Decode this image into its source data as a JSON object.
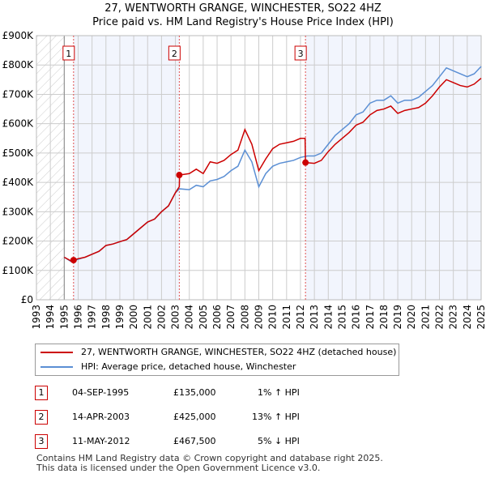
{
  "chart_data": {
    "type": "line",
    "title": "27, WENTWORTH GRANGE, WINCHESTER, SO22 4HZ",
    "subtitle": "Price paid vs. HM Land Registry's House Price Index (HPI)",
    "xlim": [
      1993,
      2025
    ],
    "ylim": [
      0,
      900000
    ],
    "y_ticks": [
      "£0",
      "£100K",
      "£200K",
      "£300K",
      "£400K",
      "£500K",
      "£600K",
      "£700K",
      "£800K",
      "£900K"
    ],
    "x_ticks": [
      "1993",
      "1994",
      "1995",
      "1996",
      "1997",
      "1998",
      "1999",
      "2000",
      "2001",
      "2002",
      "2003",
      "2004",
      "2005",
      "2006",
      "2007",
      "2008",
      "2009",
      "2010",
      "2011",
      "2012",
      "2013",
      "2014",
      "2015",
      "2016",
      "2017",
      "2018",
      "2019",
      "2020",
      "2021",
      "2022",
      "2023",
      "2024",
      "2025"
    ],
    "grid": true,
    "series": [
      {
        "name": "27, WENTWORTH GRANGE, WINCHESTER, SO22 4HZ (detached house)",
        "color": "#cc0000",
        "x": [
          1995,
          1995.5,
          1996,
          1996.5,
          1997,
          1997.5,
          1998,
          1998.5,
          1999,
          1999.5,
          2000,
          2000.5,
          2001,
          2001.5,
          2002,
          2002.5,
          2003,
          2003.28,
          2003.3,
          2004,
          2004.5,
          2005,
          2005.5,
          2006,
          2006.5,
          2007,
          2007.5,
          2008,
          2008.5,
          2009,
          2009.5,
          2010,
          2010.5,
          2011,
          2011.5,
          2012,
          2012.33,
          2012.36,
          2013,
          2013.5,
          2014,
          2014.5,
          2015,
          2015.5,
          2016,
          2016.5,
          2017,
          2017.5,
          2018,
          2018.5,
          2019,
          2019.5,
          2020,
          2020.5,
          2021,
          2021.5,
          2022,
          2022.5,
          2023,
          2023.5,
          2024,
          2024.5,
          2025
        ],
        "y": [
          145,
          132,
          140,
          145,
          155,
          165,
          185,
          190,
          198,
          205,
          225,
          245,
          265,
          275,
          300,
          320,
          365,
          385,
          425,
          430,
          445,
          430,
          470,
          465,
          475,
          495,
          510,
          580,
          530,
          440,
          480,
          515,
          530,
          535,
          540,
          550,
          550,
          467.5,
          465,
          475,
          505,
          530,
          550,
          570,
          595,
          605,
          630,
          645,
          650,
          660,
          635,
          645,
          650,
          655,
          670,
          695,
          725,
          750,
          740,
          730,
          725,
          735,
          755
        ]
      },
      {
        "name": "HPI: Average price, detached house, Winchester",
        "color": "#5b8fd4",
        "x": [
          1995,
          1995.5,
          1996,
          1996.5,
          1997,
          1997.5,
          1998,
          1998.5,
          1999,
          1999.5,
          2000,
          2000.5,
          2001,
          2001.5,
          2002,
          2002.5,
          2003,
          2003.3,
          2004,
          2004.5,
          2005,
          2005.5,
          2006,
          2006.5,
          2007,
          2007.5,
          2008,
          2008.5,
          2009,
          2009.5,
          2010,
          2010.5,
          2011,
          2011.5,
          2012,
          2012.5,
          2013,
          2013.5,
          2014,
          2014.5,
          2015,
          2015.5,
          2016,
          2016.5,
          2017,
          2017.5,
          2018,
          2018.5,
          2019,
          2019.5,
          2020,
          2020.5,
          2021,
          2021.5,
          2022,
          2022.5,
          2023,
          2023.5,
          2024,
          2024.5,
          2025
        ],
        "y": [
          145,
          130,
          138,
          145,
          155,
          165,
          185,
          190,
          198,
          205,
          225,
          245,
          265,
          275,
          300,
          320,
          365,
          378,
          375,
          390,
          385,
          405,
          410,
          420,
          440,
          455,
          510,
          470,
          385,
          430,
          455,
          465,
          470,
          475,
          485,
          490,
          490,
          500,
          530,
          560,
          580,
          600,
          630,
          640,
          670,
          680,
          680,
          695,
          670,
          680,
          680,
          690,
          710,
          730,
          760,
          790,
          780,
          770,
          760,
          770,
          795
        ]
      }
    ],
    "y_units": "thousands GBP",
    "sales": [
      {
        "num": "1",
        "date": "04-SEP-1995",
        "price": "£135,000",
        "hpi": "1% ↑ HPI",
        "x": 1995.67,
        "y": 135
      },
      {
        "num": "2",
        "date": "14-APR-2003",
        "price": "£425,000",
        "hpi": "13% ↑ HPI",
        "x": 2003.28,
        "y": 425
      },
      {
        "num": "3",
        "date": "11-MAY-2012",
        "price": "£467,500",
        "hpi": "5% ↓ HPI",
        "x": 2012.36,
        "y": 467.5
      }
    ]
  },
  "footer": [
    "Contains HM Land Registry data © Crown copyright and database right 2025.",
    "This data is licensed under the Open Government Licence v3.0."
  ]
}
